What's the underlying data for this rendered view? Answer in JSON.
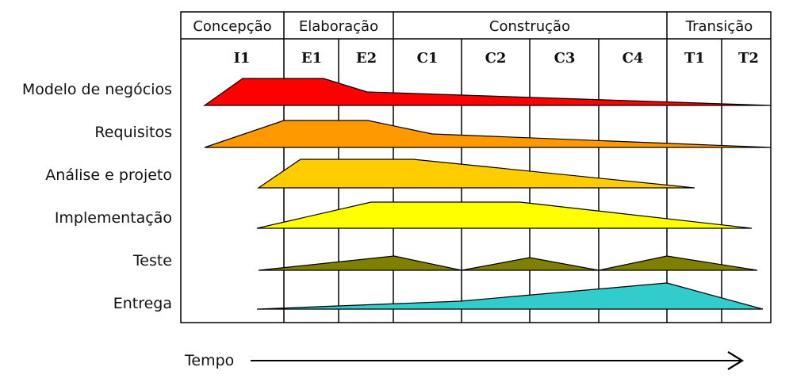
{
  "phases": [
    {
      "label": "Concepção"
    },
    {
      "label": "Elaboração"
    },
    {
      "label": "Construção"
    },
    {
      "label": "Transição"
    }
  ],
  "iterations": [
    "I1",
    "E1",
    "E2",
    "C1",
    "C2",
    "C3",
    "C4",
    "T1",
    "T2"
  ],
  "disciplines": [
    {
      "label": "Modelo de negócios",
      "color": "#ff0000"
    },
    {
      "label": "Requisitos",
      "color": "#ff9900"
    },
    {
      "label": "Análise e projeto",
      "color": "#ffcc00"
    },
    {
      "label": "Implementação",
      "color": "#ffff00"
    },
    {
      "label": "Teste",
      "color": "#808000"
    },
    {
      "label": "Entrega",
      "color": "#33cccc"
    }
  ],
  "time_axis": {
    "label": "Tempo"
  }
}
